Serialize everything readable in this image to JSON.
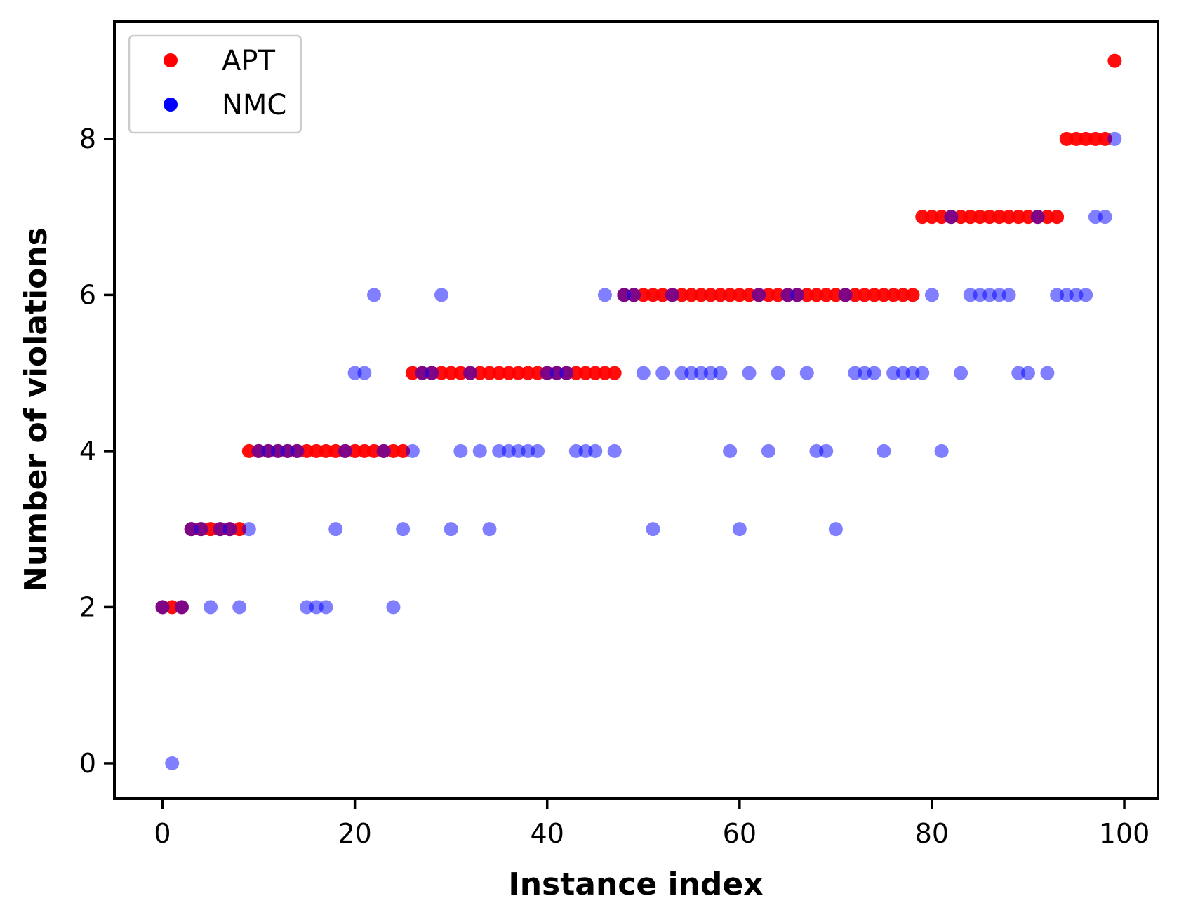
{
  "chart_data": {
    "type": "scatter",
    "xlabel": "Instance index",
    "ylabel": "Number of violations",
    "xlim": [
      -5,
      103.5
    ],
    "ylim": [
      -0.45,
      9.5
    ],
    "xticks": [
      0,
      20,
      40,
      60,
      80,
      100
    ],
    "yticks": [
      0,
      2,
      4,
      6,
      8
    ],
    "grid": false,
    "legend_position": "top-left",
    "series": [
      {
        "name": "APT",
        "color": "#ff0000",
        "opacity": 0.95,
        "x": [
          0,
          1,
          2,
          3,
          4,
          5,
          6,
          7,
          8,
          9,
          10,
          11,
          12,
          13,
          14,
          15,
          16,
          17,
          18,
          19,
          20,
          21,
          22,
          23,
          24,
          25,
          26,
          27,
          28,
          29,
          30,
          31,
          32,
          33,
          34,
          35,
          36,
          37,
          38,
          39,
          40,
          41,
          42,
          43,
          44,
          45,
          46,
          47,
          48,
          49,
          50,
          51,
          52,
          53,
          54,
          55,
          56,
          57,
          58,
          59,
          60,
          61,
          62,
          63,
          64,
          65,
          66,
          67,
          68,
          69,
          70,
          71,
          72,
          73,
          74,
          75,
          76,
          77,
          78,
          79,
          80,
          81,
          82,
          83,
          84,
          85,
          86,
          87,
          88,
          89,
          90,
          91,
          92,
          93,
          94,
          95,
          96,
          97,
          98,
          99
        ],
        "y": [
          2,
          2,
          2,
          3,
          3,
          3,
          3,
          3,
          3,
          4,
          4,
          4,
          4,
          4,
          4,
          4,
          4,
          4,
          4,
          4,
          4,
          4,
          4,
          4,
          4,
          4,
          5,
          5,
          5,
          5,
          5,
          5,
          5,
          5,
          5,
          5,
          5,
          5,
          5,
          5,
          5,
          5,
          5,
          5,
          5,
          5,
          5,
          5,
          6,
          6,
          6,
          6,
          6,
          6,
          6,
          6,
          6,
          6,
          6,
          6,
          6,
          6,
          6,
          6,
          6,
          6,
          6,
          6,
          6,
          6,
          6,
          6,
          6,
          6,
          6,
          6,
          6,
          6,
          6,
          7,
          7,
          7,
          7,
          7,
          7,
          7,
          7,
          7,
          7,
          7,
          7,
          7,
          7,
          7,
          8,
          8,
          8,
          8,
          8,
          9
        ]
      },
      {
        "name": "NMC",
        "color": "#0000ff",
        "opacity": 0.5,
        "x": [
          0,
          1,
          2,
          3,
          4,
          5,
          6,
          7,
          8,
          9,
          10,
          11,
          12,
          13,
          14,
          15,
          16,
          17,
          18,
          19,
          20,
          21,
          22,
          23,
          24,
          25,
          26,
          27,
          28,
          29,
          30,
          31,
          32,
          33,
          34,
          35,
          36,
          37,
          38,
          39,
          40,
          41,
          42,
          43,
          44,
          45,
          46,
          47,
          48,
          49,
          50,
          51,
          52,
          53,
          54,
          55,
          56,
          57,
          58,
          59,
          60,
          61,
          62,
          63,
          64,
          65,
          66,
          67,
          68,
          69,
          70,
          71,
          72,
          73,
          74,
          75,
          76,
          77,
          78,
          79,
          80,
          81,
          82,
          83,
          84,
          85,
          86,
          87,
          88,
          89,
          90,
          91,
          92,
          93,
          94,
          95,
          96,
          97,
          98,
          99
        ],
        "y": [
          2,
          0,
          2,
          3,
          3,
          2,
          3,
          3,
          2,
          3,
          4,
          4,
          4,
          4,
          4,
          2,
          2,
          2,
          3,
          4,
          5,
          5,
          6,
          4,
          2,
          3,
          4,
          5,
          5,
          6,
          3,
          4,
          5,
          4,
          3,
          4,
          4,
          4,
          4,
          4,
          5,
          5,
          5,
          4,
          4,
          4,
          6,
          4,
          6,
          6,
          5,
          3,
          5,
          6,
          5,
          5,
          5,
          5,
          5,
          4,
          3,
          5,
          6,
          4,
          5,
          6,
          6,
          5,
          4,
          4,
          3,
          6,
          5,
          5,
          5,
          4,
          5,
          5,
          5,
          5,
          6,
          4,
          7,
          5,
          6,
          6,
          6,
          6,
          6,
          5,
          5,
          7,
          5,
          6,
          6,
          6,
          6,
          7,
          7,
          8
        ]
      }
    ]
  }
}
